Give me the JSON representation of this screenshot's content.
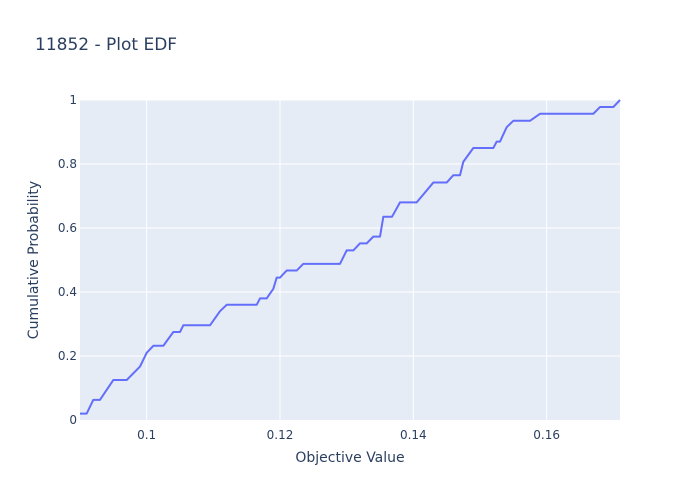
{
  "chart_data": {
    "type": "line",
    "title": "11852 - Plot EDF",
    "xlabel": "Objective Value",
    "ylabel": "Cumulative Probability",
    "xlim": [
      0.09,
      0.171
    ],
    "ylim": [
      0,
      1
    ],
    "xticks": [
      0.1,
      0.12,
      0.14,
      0.16
    ],
    "xtick_labels": [
      "0.1",
      "0.12",
      "0.14",
      "0.16"
    ],
    "yticks": [
      0,
      0.2,
      0.4,
      0.6,
      0.8,
      1
    ],
    "ytick_labels": [
      "0",
      "0.2",
      "0.4",
      "0.6",
      "0.8",
      "1"
    ],
    "grid": true,
    "legend": false,
    "colors": {
      "line": "#636efa",
      "plot_bg": "#e5ecf6",
      "grid": "#ffffff",
      "text": "#2a3f5f"
    },
    "series": [
      {
        "x": [
          0.09,
          0.091,
          0.092,
          0.093,
          0.095,
          0.097,
          0.099,
          0.1,
          0.101,
          0.1025,
          0.104,
          0.105,
          0.1055,
          0.107,
          0.108,
          0.1095,
          0.111,
          0.112,
          0.114,
          0.1165,
          0.117,
          0.118,
          0.1185,
          0.119,
          0.1195,
          0.12,
          0.121,
          0.1225,
          0.1235,
          0.125,
          0.127,
          0.129,
          0.13,
          0.131,
          0.132,
          0.133,
          0.134,
          0.135,
          0.1355,
          0.1362,
          0.1368,
          0.138,
          0.139,
          0.1405,
          0.143,
          0.145,
          0.146,
          0.147,
          0.1475,
          0.149,
          0.15,
          0.151,
          0.152,
          0.1525,
          0.153,
          0.154,
          0.155,
          0.1565,
          0.1575,
          0.159,
          0.16,
          0.161,
          0.163,
          0.167,
          0.168,
          0.169,
          0.17,
          0.171
        ],
        "y": [
          0.02,
          0.02,
          0.063,
          0.063,
          0.125,
          0.125,
          0.167,
          0.21,
          0.232,
          0.232,
          0.275,
          0.275,
          0.296,
          0.296,
          0.296,
          0.296,
          0.34,
          0.36,
          0.36,
          0.36,
          0.38,
          0.38,
          0.395,
          0.41,
          0.445,
          0.445,
          0.467,
          0.467,
          0.488,
          0.488,
          0.488,
          0.488,
          0.53,
          0.53,
          0.552,
          0.552,
          0.573,
          0.573,
          0.635,
          0.635,
          0.635,
          0.68,
          0.68,
          0.68,
          0.742,
          0.742,
          0.765,
          0.765,
          0.807,
          0.85,
          0.85,
          0.85,
          0.85,
          0.87,
          0.87,
          0.915,
          0.935,
          0.935,
          0.935,
          0.957,
          0.957,
          0.957,
          0.957,
          0.957,
          0.978,
          0.978,
          0.978,
          1.0
        ]
      }
    ]
  }
}
